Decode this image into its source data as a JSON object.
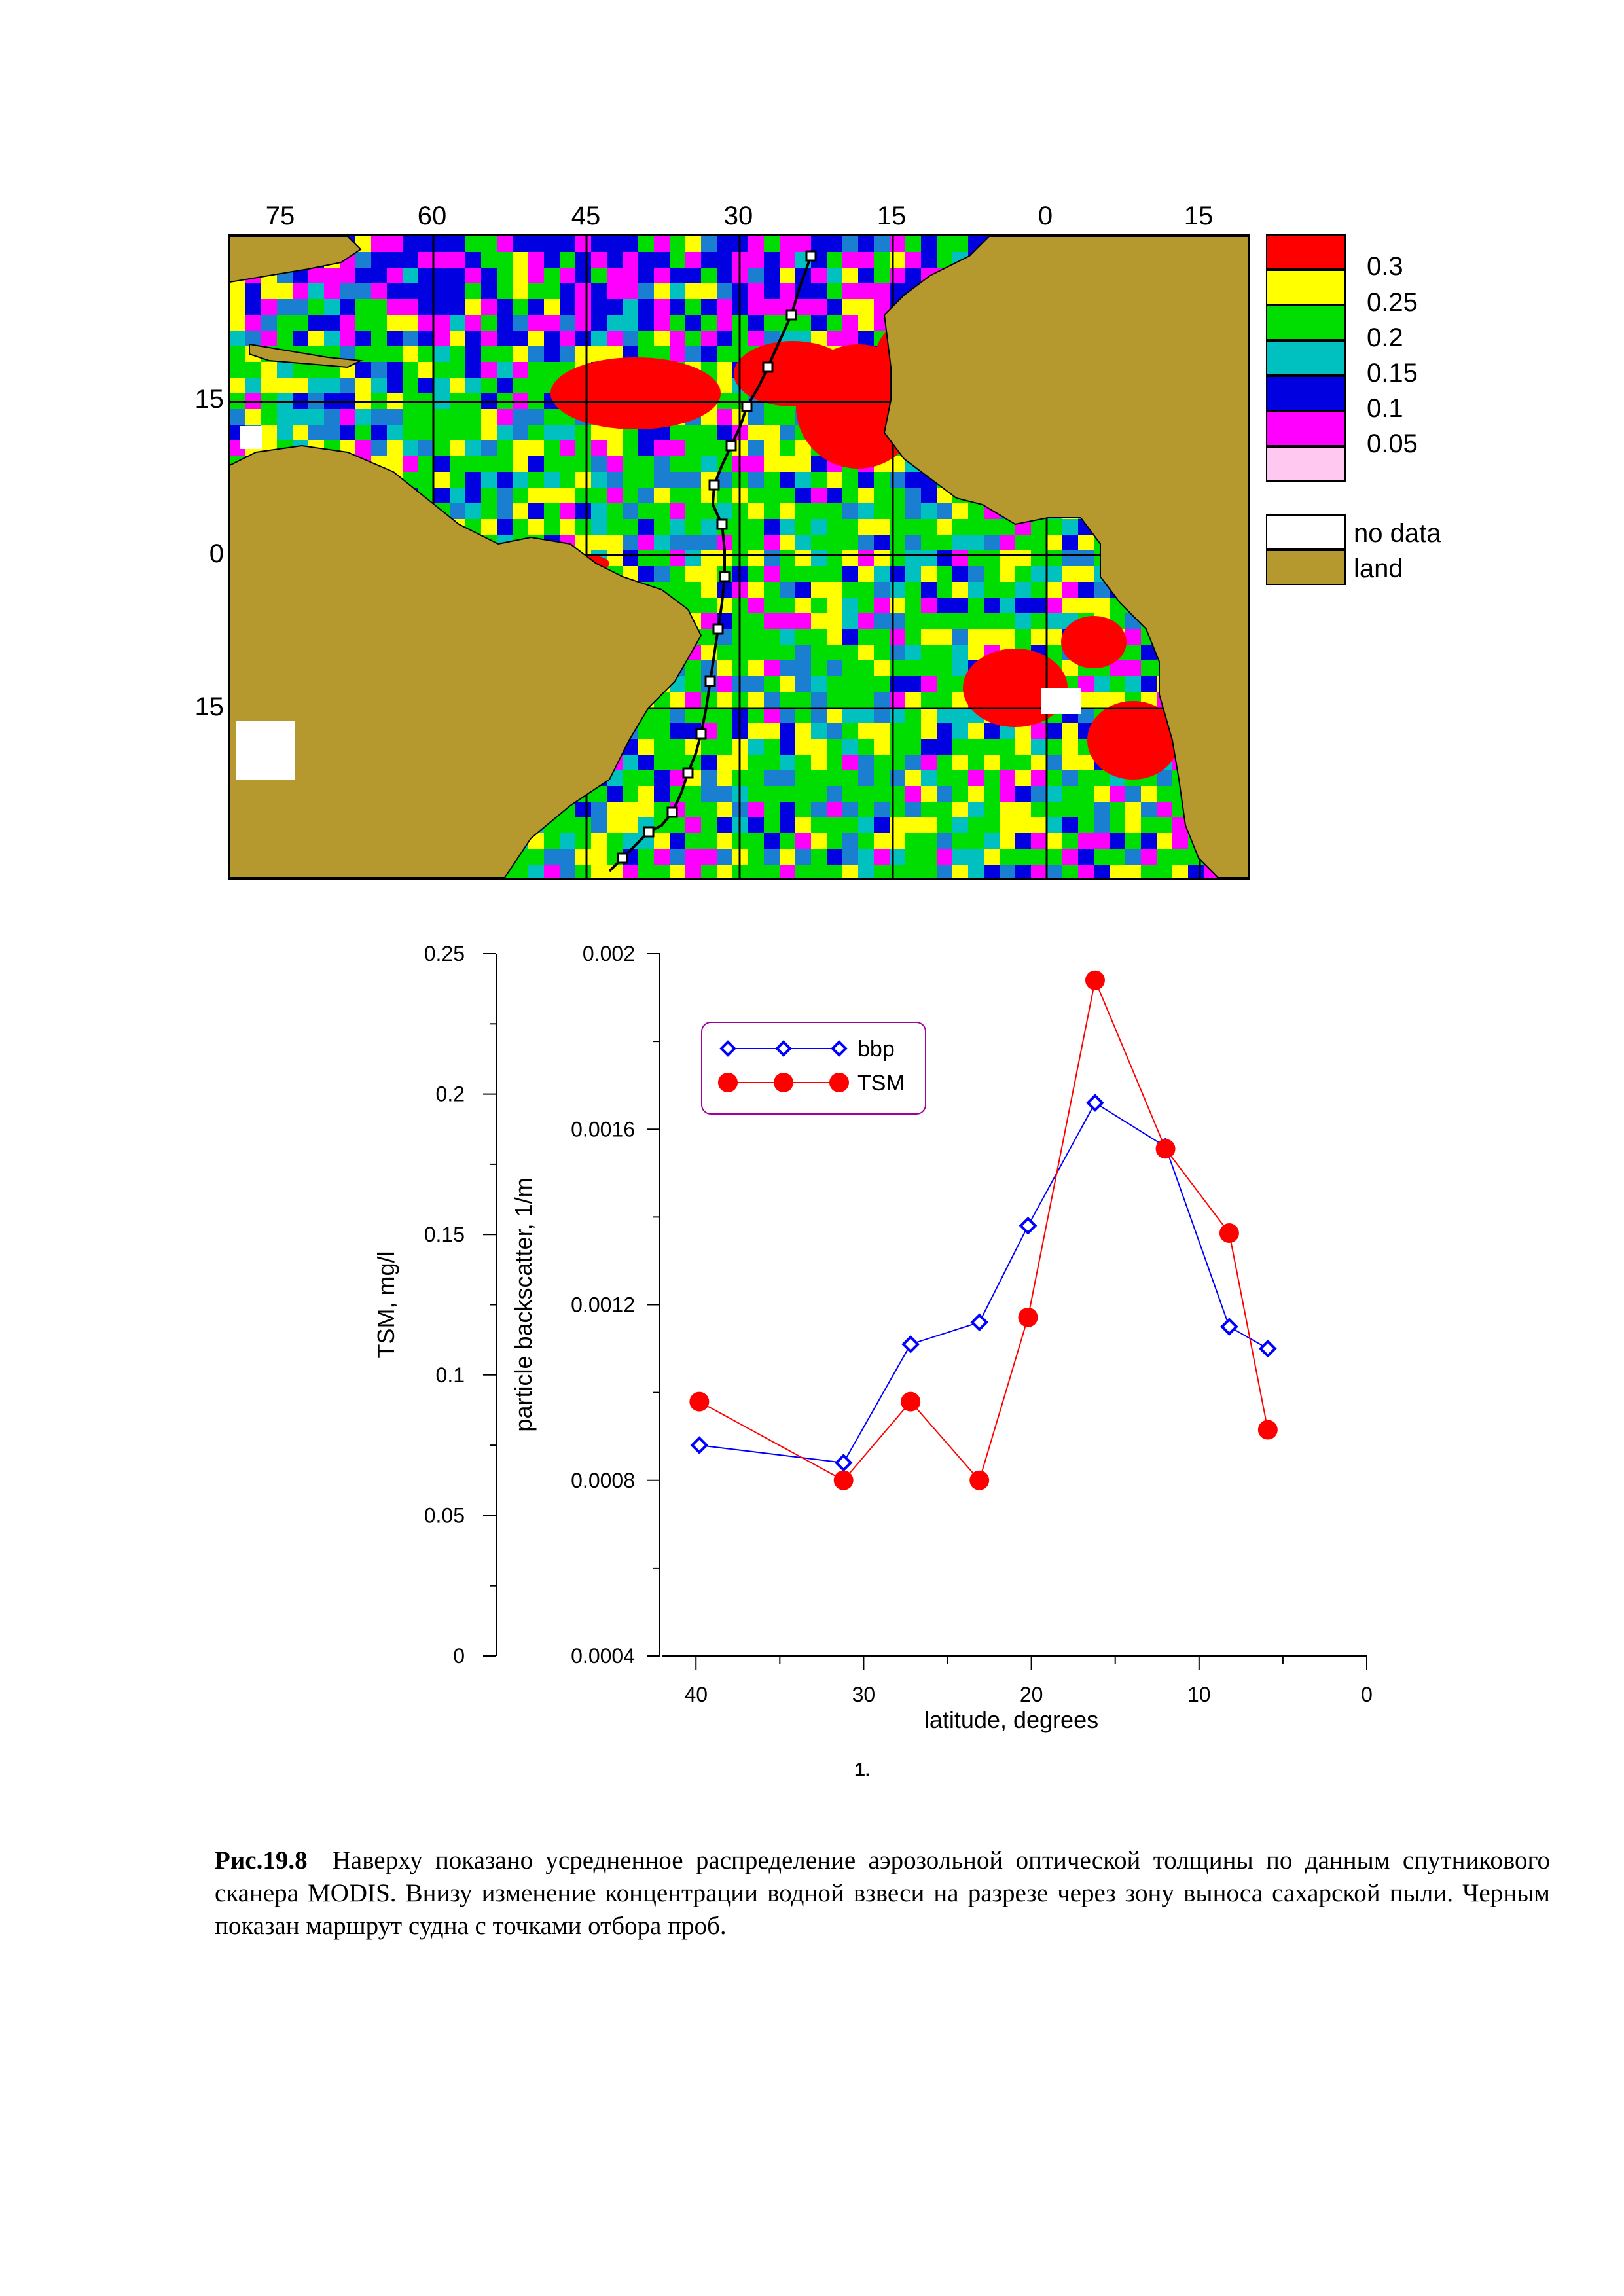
{
  "map": {
    "lon_ticks": [
      "75",
      "60",
      "45",
      "30",
      "15",
      "0",
      "15"
    ],
    "lat_ticks": [
      "15",
      "0",
      "15"
    ],
    "colors": {
      "ocean_base": "#1a7fd0",
      "land": "#b5982e",
      "route": "#000000"
    },
    "legend": [
      {
        "label": "0.3",
        "color": "#ff0000"
      },
      {
        "label": "0.25",
        "color": "#ffff00"
      },
      {
        "label": "0.2",
        "color": "#00dd00"
      },
      {
        "label": "0.15",
        "color": "#00c0c0"
      },
      {
        "label": "0.1",
        "color": "#0000e0"
      },
      {
        "label": "0.05",
        "color": "#ff00ff"
      },
      {
        "label": "",
        "color": "#ffc8f0"
      }
    ],
    "legend_extra": [
      {
        "label": "no data",
        "color": "#ffffff"
      },
      {
        "label": "land",
        "color": "#b5982e"
      }
    ]
  },
  "chart_data": {
    "type": "line",
    "xlabel": "latitude, degrees",
    "ylabel_left": "TSM, mg/l",
    "ylabel_right": "particle backscatter, 1/m",
    "x_ticks": [
      "40",
      "30",
      "20",
      "10",
      "0"
    ],
    "xlim": [
      0,
      42
    ],
    "x_reversed": true,
    "left_axis": {
      "ticks": [
        "0.25",
        "0.2",
        "0.15",
        "0.1",
        "0.05",
        "0"
      ],
      "ylim": [
        0,
        0.25
      ]
    },
    "right_axis": {
      "ticks": [
        "0.002",
        "0.0016",
        "0.0012",
        "0.0008",
        "0.0004"
      ],
      "ylim": [
        0.0004,
        0.002
      ]
    },
    "series": [
      {
        "name": "bbp",
        "axis": "right",
        "color": "#0000ff",
        "marker": "diamond",
        "x": [
          39.8,
          31.2,
          27.2,
          23.1,
          20.2,
          16.2,
          12.0,
          8.2,
          5.9
        ],
        "y": [
          0.00088,
          0.00084,
          0.00111,
          0.00116,
          0.00138,
          0.00166,
          0.00156,
          0.00115,
          0.0011
        ]
      },
      {
        "name": "TSM",
        "axis": "left",
        "color": "#ff0000",
        "marker": "circle",
        "x": [
          39.8,
          31.2,
          27.2,
          23.1,
          20.2,
          16.2,
          12.0,
          8.2,
          5.9
        ],
        "y": [
          0.0905,
          0.0625,
          0.0905,
          0.0625,
          0.1205,
          0.2405,
          0.1805,
          0.1505,
          0.0805
        ]
      }
    ],
    "legend_placement": "top-left"
  },
  "figure_number": "1.",
  "caption": {
    "label": "Рис.19.8",
    "text": "Наверху показано усредненное распределение аэрозольной оптической толщины по данным спутникового сканера MODIS. Внизу изменение концентрации водной взвеси на разрезе через зону выноса сахарской пыли. Черным показан маршрут судна с точками отбора проб."
  }
}
